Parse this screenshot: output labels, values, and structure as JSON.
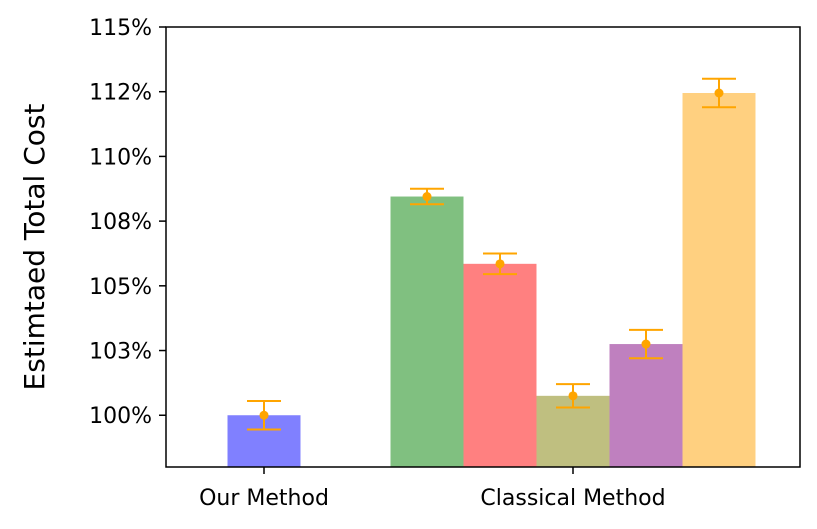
{
  "chart_data": {
    "type": "bar",
    "title": "",
    "xlabel": "",
    "ylabel": "Estimtaed Total Cost",
    "ylim": [
      98.0,
      115.0
    ],
    "y_ticks": [
      {
        "value": 100.0,
        "label": "100%"
      },
      {
        "value": 102.5,
        "label": "103%"
      },
      {
        "value": 105.0,
        "label": "105%"
      },
      {
        "value": 107.5,
        "label": "108%"
      },
      {
        "value": 110.0,
        "label": "110%"
      },
      {
        "value": 112.5,
        "label": "112%"
      },
      {
        "value": 115.0,
        "label": "115%"
      }
    ],
    "x_groups": [
      {
        "label": "Our Method"
      },
      {
        "label": "Classical Method"
      }
    ],
    "grid": false,
    "legend": "none",
    "errorbar_color": "#FFA500",
    "bars": [
      {
        "group": 0,
        "value": 100.0,
        "err": 0.55,
        "color": "#8080FF"
      },
      {
        "group": 1,
        "value": 108.45,
        "err": 0.3,
        "color": "#80C080"
      },
      {
        "group": 1,
        "value": 105.85,
        "err": 0.4,
        "color": "#FF8080"
      },
      {
        "group": 1,
        "value": 100.75,
        "err": 0.45,
        "color": "#BFBF80"
      },
      {
        "group": 1,
        "value": 102.75,
        "err": 0.55,
        "color": "#BF80BF"
      },
      {
        "group": 1,
        "value": 112.45,
        "err": 0.55,
        "color": "#FFD080"
      }
    ]
  }
}
